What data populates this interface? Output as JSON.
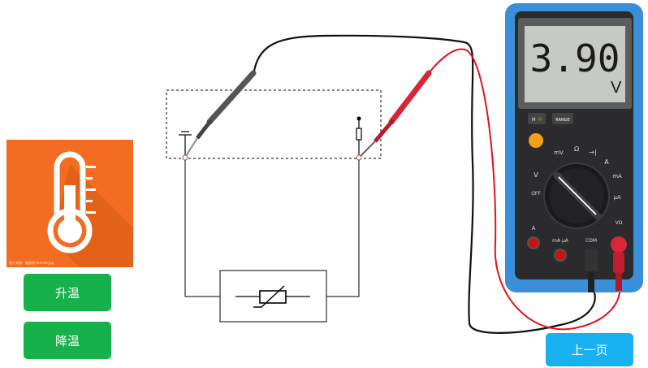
{
  "controls": {
    "heat_label": "升温",
    "cool_label": "降温",
    "prev_page_label": "上一页"
  },
  "multimeter": {
    "reading": "3.90",
    "unit": "V",
    "hold_label": "H",
    "range_label": "RANGE",
    "dial_labels": {
      "mv": "mV",
      "dcv": "V",
      "acv": "V",
      "off": "OFF",
      "ohm": "Ω",
      "diode": "",
      "amp": "A",
      "ma": "mA",
      "ua": "μA"
    },
    "jack_labels": {
      "a": "A",
      "ma_ua": "mA μA",
      "com": "COM",
      "v_ohm": "VΩ"
    }
  },
  "thermo_caption": "图片来源：摄图网 thermo.jpg",
  "colors": {
    "orange_tile": "#f26d21",
    "green_button": "#17b14c",
    "blue_button": "#16b1ee",
    "meter_body": "#3a8fd8",
    "red_probe": "#d9253a",
    "lcd_bg": "#c7c9c4"
  }
}
